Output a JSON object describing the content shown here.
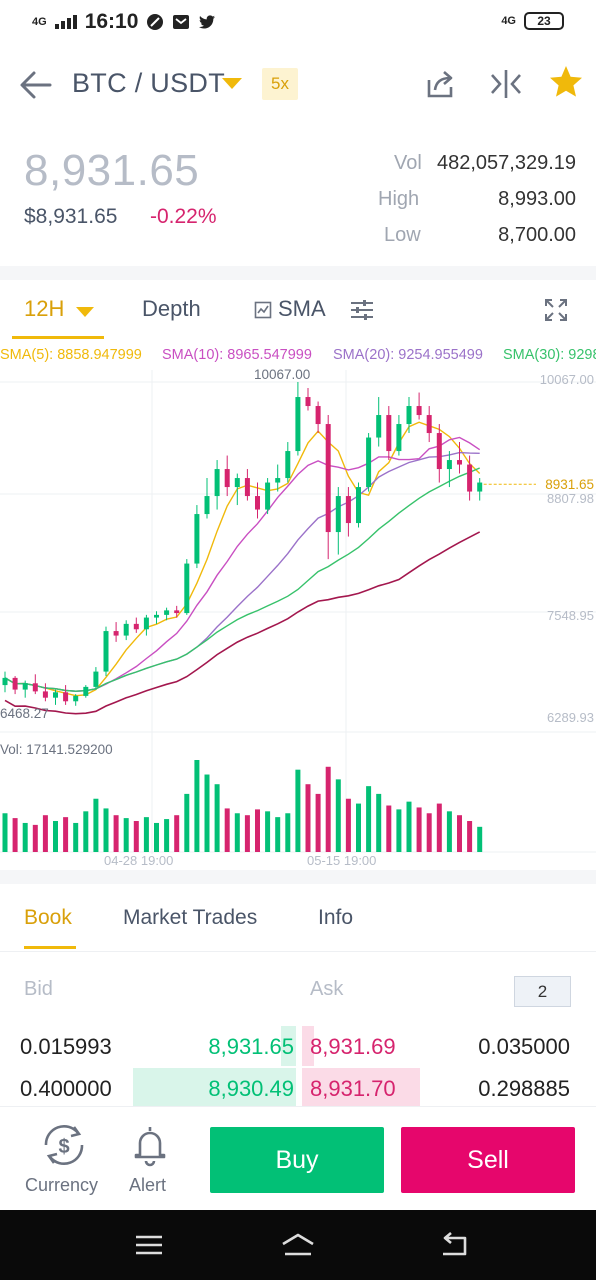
{
  "status_bar": {
    "time": "16:10",
    "network_left": "4G",
    "network_right": "4G",
    "battery": "23"
  },
  "header": {
    "pair": "BTC / USDT",
    "leverage": "5x"
  },
  "price": {
    "last": "8,931.65",
    "fiat": "$8,931.65",
    "change": "-0.22%",
    "vol_label": "Vol",
    "vol_value": "482,057,329.19",
    "high_label": "High",
    "high_value": "8,993.00",
    "low_label": "Low",
    "low_value": "8,700.00"
  },
  "chart_tabs": {
    "interval": "12H",
    "depth": "Depth",
    "indicator": "SMA"
  },
  "chart_data": {
    "type": "candlestick",
    "sma_legend": [
      {
        "label": "SMA(5): 8858.947999",
        "color": "#f0b90b"
      },
      {
        "label": "SMA(10): 8965.547999",
        "color": "#c94fc2"
      },
      {
        "label": "SMA(20): 9254.955499",
        "color": "#9b72c9"
      },
      {
        "label": "SMA(30): 9298",
        "color": "#37c26b"
      }
    ],
    "price_axis": [
      "10067.00",
      "8807.98",
      "7548.95",
      "6289.93"
    ],
    "current_price": "8931.65",
    "high_marker": "10067.00",
    "low_marker": "6468.27",
    "volume_label": "Vol: 17141.529200",
    "time_axis": [
      "04-28 19:00",
      "05-15 19:00"
    ],
    "up_color": "#02c076",
    "down_color": "#d6246e",
    "candles": [
      [
        6700,
        6850,
        6620,
        6780
      ],
      [
        6780,
        6800,
        6600,
        6650
      ],
      [
        6650,
        6750,
        6560,
        6720
      ],
      [
        6720,
        6820,
        6600,
        6630
      ],
      [
        6630,
        6720,
        6520,
        6560
      ],
      [
        6560,
        6650,
        6480,
        6620
      ],
      [
        6620,
        6700,
        6480,
        6520
      ],
      [
        6520,
        6600,
        6470,
        6580
      ],
      [
        6580,
        6700,
        6560,
        6680
      ],
      [
        6680,
        6900,
        6650,
        6850
      ],
      [
        6850,
        7350,
        6800,
        7300
      ],
      [
        7300,
        7400,
        7180,
        7250
      ],
      [
        7250,
        7420,
        7200,
        7380
      ],
      [
        7380,
        7450,
        7280,
        7320
      ],
      [
        7320,
        7480,
        7250,
        7450
      ],
      [
        7450,
        7520,
        7380,
        7480
      ],
      [
        7480,
        7560,
        7420,
        7530
      ],
      [
        7530,
        7580,
        7450,
        7500
      ],
      [
        7500,
        8100,
        7480,
        8050
      ],
      [
        8050,
        8700,
        8000,
        8600
      ],
      [
        8600,
        9000,
        8550,
        8800
      ],
      [
        8800,
        9200,
        8650,
        9100
      ],
      [
        9100,
        9250,
        8800,
        8900
      ],
      [
        8900,
        9050,
        8700,
        9000
      ],
      [
        9000,
        9100,
        8750,
        8800
      ],
      [
        8800,
        8950,
        8550,
        8650
      ],
      [
        8650,
        9000,
        8600,
        8950
      ],
      [
        8950,
        9150,
        8850,
        9000
      ],
      [
        9000,
        9400,
        8950,
        9300
      ],
      [
        9300,
        10067,
        9250,
        9900
      ],
      [
        9900,
        10000,
        9750,
        9800
      ],
      [
        9800,
        9850,
        9500,
        9600
      ],
      [
        9600,
        9700,
        8100,
        8400
      ],
      [
        8400,
        8900,
        8150,
        8800
      ],
      [
        8800,
        8900,
        8350,
        8500
      ],
      [
        8500,
        8950,
        8450,
        8900
      ],
      [
        8900,
        9500,
        8850,
        9450
      ],
      [
        9450,
        9900,
        9350,
        9700
      ],
      [
        9700,
        9800,
        9200,
        9300
      ],
      [
        9300,
        9700,
        9250,
        9600
      ],
      [
        9600,
        9900,
        9500,
        9800
      ],
      [
        9800,
        9950,
        9650,
        9700
      ],
      [
        9700,
        9800,
        9400,
        9500
      ],
      [
        9500,
        9600,
        8950,
        9100
      ],
      [
        9100,
        9300,
        8900,
        9200
      ],
      [
        9200,
        9400,
        9050,
        9150
      ],
      [
        9150,
        9250,
        8750,
        8850
      ],
      [
        8850,
        9000,
        8750,
        8950
      ]
    ],
    "volumes": [
      40,
      35,
      30,
      28,
      38,
      32,
      36,
      30,
      42,
      55,
      45,
      38,
      35,
      32,
      36,
      30,
      34,
      38,
      60,
      95,
      80,
      70,
      45,
      40,
      38,
      44,
      42,
      36,
      40,
      85,
      70,
      60,
      88,
      75,
      55,
      50,
      68,
      60,
      48,
      44,
      52,
      46,
      40,
      50,
      42,
      38,
      32,
      26
    ]
  },
  "order_book": {
    "tabs": [
      "Book",
      "Market Trades",
      "Info"
    ],
    "bid_label": "Bid",
    "ask_label": "Ask",
    "depth": "2",
    "rows": [
      {
        "bid_amount": "0.015993",
        "bid_price": "8,931.65",
        "ask_price": "8,931.69",
        "ask_amount": "0.035000",
        "bid_depth": 0.05,
        "ask_depth": 0.04
      },
      {
        "bid_amount": "0.400000",
        "bid_price": "8,930.49",
        "ask_price": "8,931.70",
        "ask_amount": "0.298885",
        "bid_depth": 0.55,
        "ask_depth": 0.4
      }
    ]
  },
  "actions": {
    "currency": "Currency",
    "alert": "Alert",
    "buy": "Buy",
    "sell": "Sell"
  }
}
